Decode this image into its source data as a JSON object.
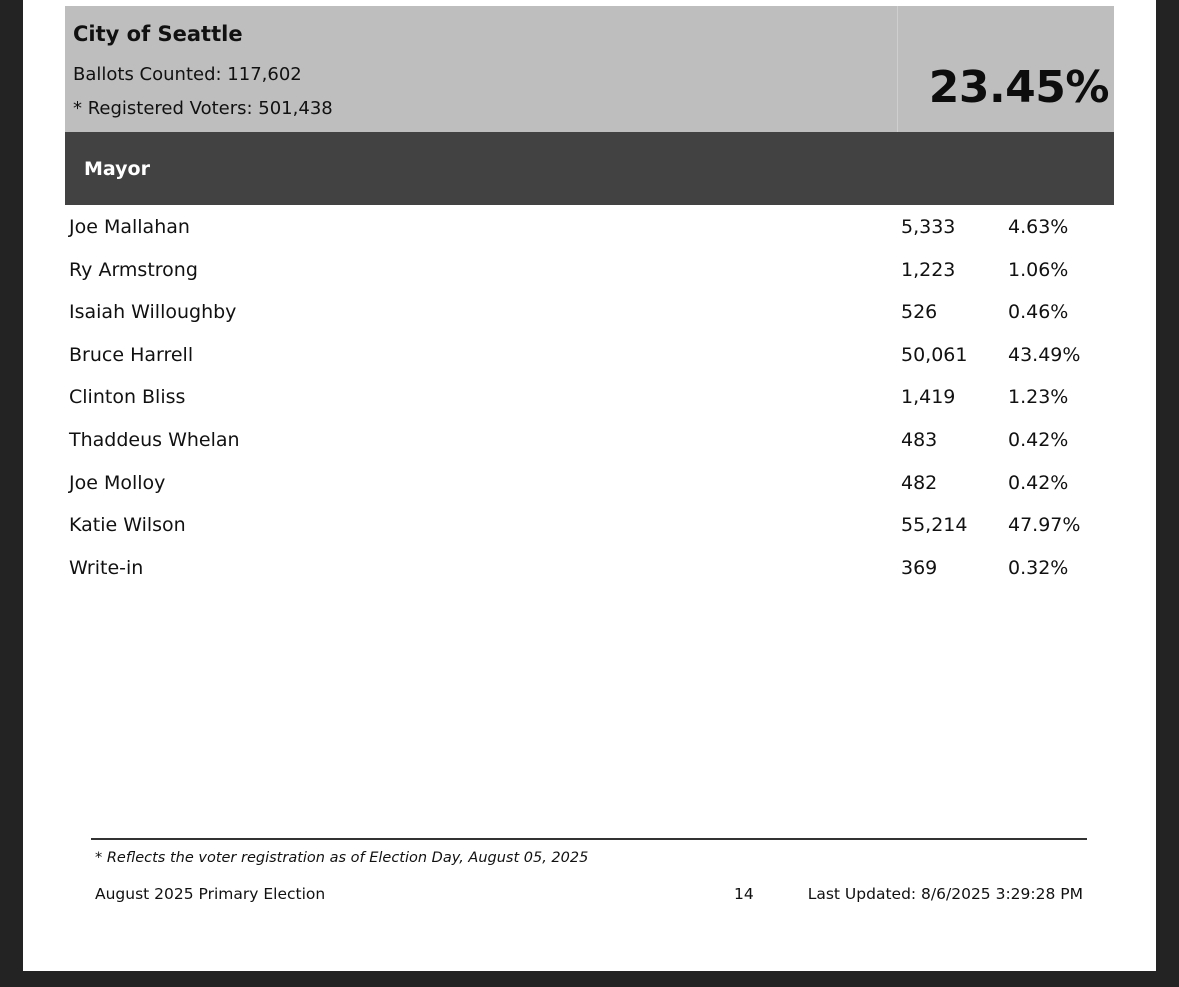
{
  "summary": {
    "jurisdiction": "City of Seattle",
    "ballots_counted": "Ballots Counted: 117,602",
    "registered_voters": "* Registered Voters: 501,438",
    "turnout": "23.45%"
  },
  "race": {
    "title": "Mayor",
    "candidates": [
      {
        "name": "Joe Mallahan",
        "votes": "5,333",
        "percent": "4.63%"
      },
      {
        "name": "Ry Armstrong",
        "votes": "1,223",
        "percent": "1.06%"
      },
      {
        "name": "Isaiah Willoughby",
        "votes": "526",
        "percent": "0.46%"
      },
      {
        "name": "Bruce Harrell",
        "votes": "50,061",
        "percent": "43.49%"
      },
      {
        "name": "Clinton Bliss",
        "votes": "1,419",
        "percent": "1.23%"
      },
      {
        "name": "Thaddeus Whelan",
        "votes": "483",
        "percent": "0.42%"
      },
      {
        "name": "Joe Molloy",
        "votes": "482",
        "percent": "0.42%"
      },
      {
        "name": "Katie Wilson",
        "votes": "55,214",
        "percent": "47.97%"
      },
      {
        "name": "Write-in",
        "votes": "369",
        "percent": "0.32%"
      }
    ]
  },
  "footer": {
    "footnote": "* Reflects the voter registration as of Election Day, August 05, 2025",
    "election_name": "August 2025 Primary Election",
    "page_number": "14",
    "last_updated": "Last Updated: 8/6/2025 3:29:28 PM"
  },
  "colors": {
    "summary_background": "#bebebe",
    "race_header_background": "#424242",
    "page_background": "#ffffff",
    "viewer_background": "#232323"
  }
}
